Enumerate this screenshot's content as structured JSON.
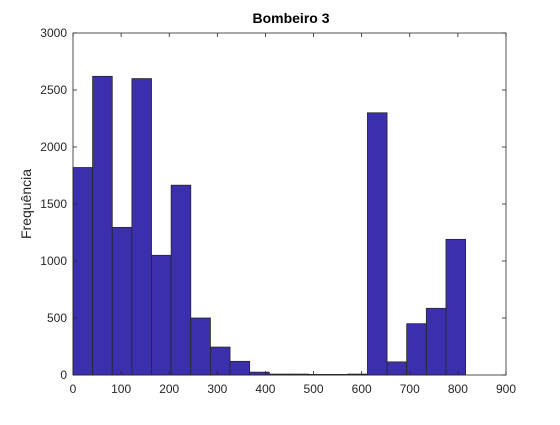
{
  "chart_data": {
    "type": "bar",
    "title": "Bombeiro 3",
    "xlabel": "",
    "ylabel": "Frequência",
    "xlim": [
      0,
      900
    ],
    "ylim": [
      0,
      3000
    ],
    "xticks": [
      0,
      100,
      200,
      300,
      400,
      500,
      600,
      700,
      800,
      900
    ],
    "yticks": [
      0,
      500,
      1000,
      1500,
      2000,
      2500,
      3000
    ],
    "grid": false,
    "bin_width": 40.8,
    "bins": [
      {
        "x0": 0.0,
        "x1": 40.8,
        "value": 1820
      },
      {
        "x0": 40.8,
        "x1": 81.6,
        "value": 2620
      },
      {
        "x0": 81.6,
        "x1": 122.4,
        "value": 1295
      },
      {
        "x0": 122.4,
        "x1": 163.2,
        "value": 2600
      },
      {
        "x0": 163.2,
        "x1": 204.0,
        "value": 1050
      },
      {
        "x0": 204.0,
        "x1": 244.8,
        "value": 1665
      },
      {
        "x0": 244.8,
        "x1": 285.6,
        "value": 500
      },
      {
        "x0": 285.6,
        "x1": 326.4,
        "value": 245
      },
      {
        "x0": 326.4,
        "x1": 367.2,
        "value": 120
      },
      {
        "x0": 367.2,
        "x1": 408.0,
        "value": 25
      },
      {
        "x0": 408.0,
        "x1": 448.8,
        "value": 8
      },
      {
        "x0": 448.8,
        "x1": 489.6,
        "value": 8
      },
      {
        "x0": 489.6,
        "x1": 530.4,
        "value": 5
      },
      {
        "x0": 530.4,
        "x1": 571.2,
        "value": 5
      },
      {
        "x0": 571.2,
        "x1": 612.0,
        "value": 8
      },
      {
        "x0": 612.0,
        "x1": 652.8,
        "value": 2300
      },
      {
        "x0": 652.8,
        "x1": 693.6,
        "value": 115
      },
      {
        "x0": 693.6,
        "x1": 734.4,
        "value": 450
      },
      {
        "x0": 734.4,
        "x1": 775.2,
        "value": 585
      },
      {
        "x0": 775.2,
        "x1": 816.0,
        "value": 1190
      }
    ],
    "bar_color": "#3b2fae",
    "edge_color": "#262626",
    "axis_color": "#262626"
  }
}
